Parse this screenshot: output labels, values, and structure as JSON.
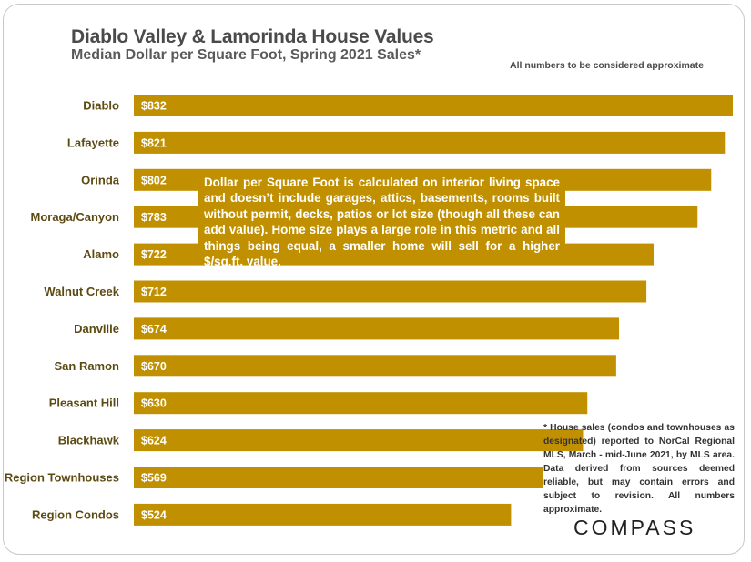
{
  "colors": {
    "bar": "#c19000",
    "label": "#5c4a12",
    "bar_text": "#ffffff"
  },
  "header": {
    "title": "Diablo Valley & Lamorinda House Values",
    "subtitle": "Median Dollar per Square Foot, Spring 2021 Sales*",
    "approx_note": "All numbers to be considered approximate"
  },
  "callout": {
    "text": "Dollar per Square Foot is calculated on interior living space and doesn’t include garages, attics, basements, rooms built without permit, decks, patios or lot size (though all these can add value). Home size plays a large role in this metric and all things being equal, a smaller home will sell for a higher $/sq.ft. value."
  },
  "footnote": {
    "text": "* House sales (condos and townhouses as designated) reported to NorCal Regional MLS, March - mid-June 2021, by MLS area. Data derived from sources deemed reliable, but may contain errors and subject to revision. All numbers approximate."
  },
  "brand": {
    "logo_text": "COMPASS"
  },
  "chart_data": {
    "type": "bar",
    "orientation": "horizontal",
    "title": "Diablo Valley & Lamorinda House Values",
    "subtitle": "Median Dollar per Square Foot, Spring 2021 Sales*",
    "xlabel": "",
    "ylabel": "",
    "value_prefix": "$",
    "xlim": [
      0,
      832
    ],
    "grid": false,
    "categories": [
      "Diablo",
      "Lafayette",
      "Orinda",
      "Moraga/Canyon",
      "Alamo",
      "Walnut Creek",
      "Danville",
      "San Ramon",
      "Pleasant Hill",
      "Blackhawk",
      "Region Townhouses",
      "Region Condos"
    ],
    "values": [
      832,
      821,
      802,
      783,
      722,
      712,
      674,
      670,
      630,
      624,
      569,
      524
    ],
    "data_labels": [
      "$832",
      "$821",
      "$802",
      "$783",
      "$722",
      "$712",
      "$674",
      "$670",
      "$630",
      "$624",
      "$569",
      "$524"
    ]
  }
}
